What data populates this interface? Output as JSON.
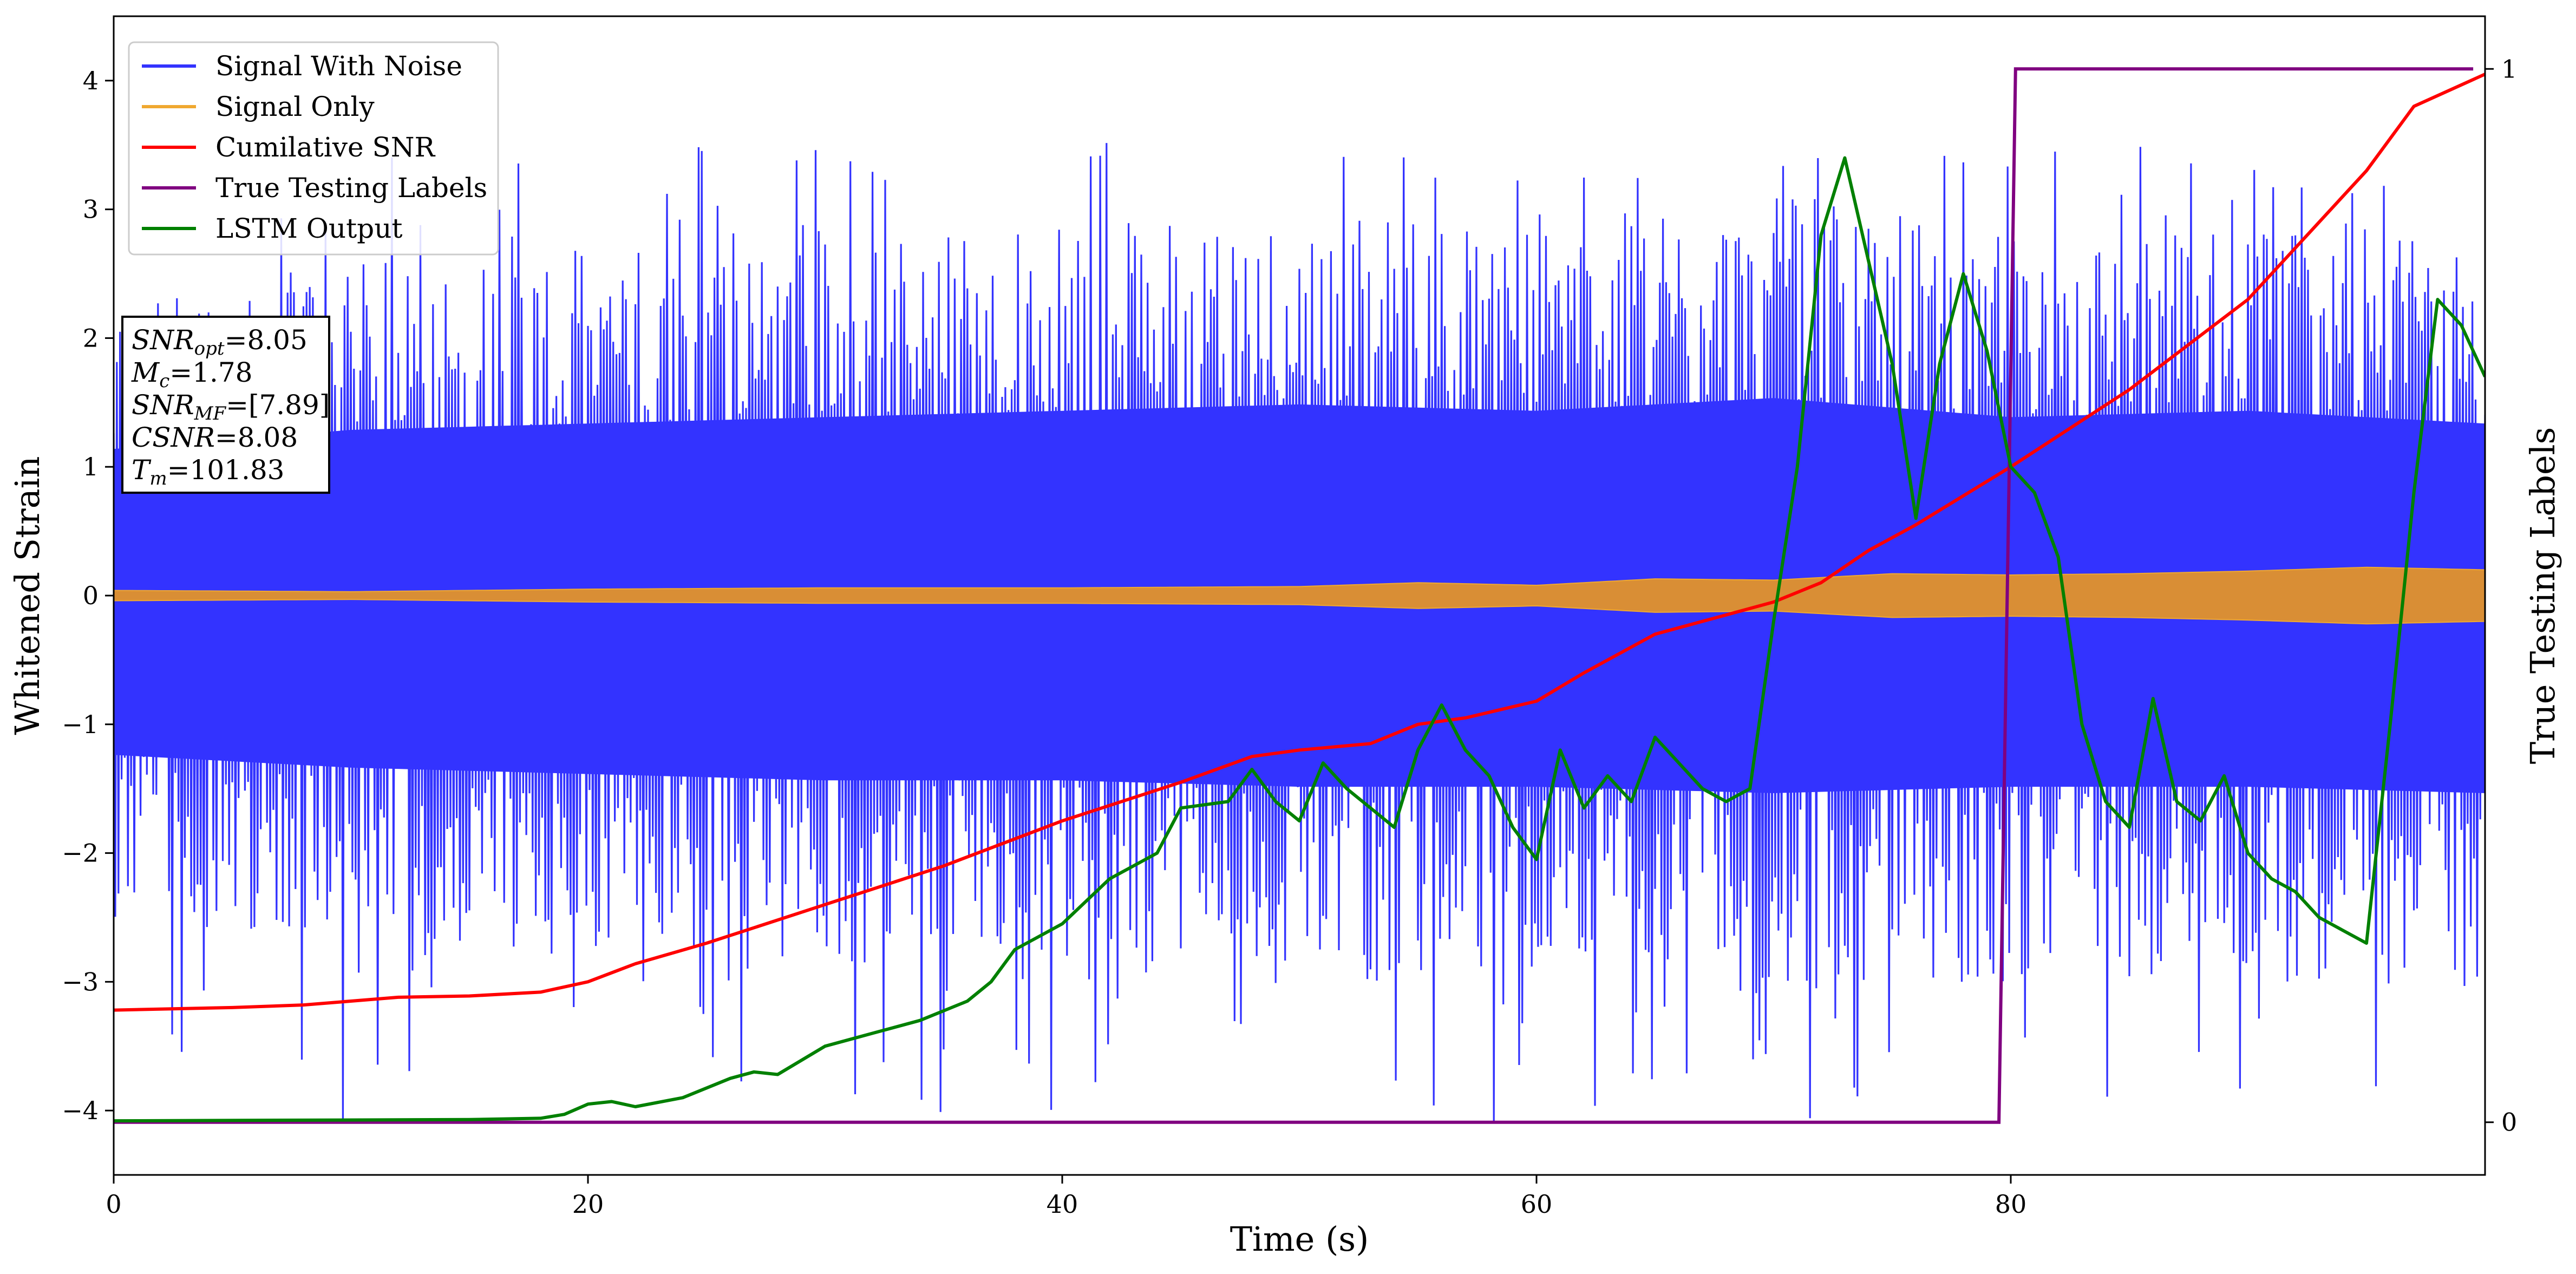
{
  "chart_data": {
    "type": "line",
    "xlabel": "Time (s)",
    "ylabel": "Whitened Strain",
    "ylabel_right": "True Testing Labels",
    "xlim": [
      0,
      100
    ],
    "ylim": [
      -4.5,
      4.5
    ],
    "ylim_right": [
      -0.05,
      1.05
    ],
    "xticks": [
      0,
      20,
      40,
      60,
      80
    ],
    "yticks": [
      -4,
      -3,
      -2,
      -1,
      0,
      1,
      2,
      3,
      4
    ],
    "yticks_right": [
      0,
      1
    ],
    "legend": {
      "placement": "top-left"
    },
    "series": [
      {
        "name": "Signal With Noise",
        "color": "#3333ff",
        "axis": "left",
        "note": "dense noise band",
        "x": [
          0,
          10,
          20,
          30,
          40,
          50,
          60,
          70,
          80,
          90,
          100
        ],
        "envelope_upper": [
          2.3,
          2.6,
          2.7,
          2.8,
          2.9,
          3.0,
          2.9,
          3.1,
          2.8,
          2.9,
          2.7
        ],
        "envelope_lower": [
          -2.5,
          -2.7,
          -2.8,
          -2.9,
          -2.9,
          -3.0,
          -3.0,
          -3.1,
          -3.0,
          -3.0,
          -3.1
        ],
        "peak_max": 3.55,
        "peak_min": -4.1
      },
      {
        "name": "Signal Only",
        "color": "#f0a830",
        "axis": "left",
        "x": [
          0,
          10,
          20,
          30,
          40,
          50,
          55,
          60,
          65,
          70,
          75,
          80,
          85,
          90,
          95,
          100
        ],
        "amplitude": [
          0.04,
          0.03,
          0.05,
          0.06,
          0.06,
          0.07,
          0.1,
          0.08,
          0.13,
          0.12,
          0.17,
          0.16,
          0.17,
          0.19,
          0.22,
          0.2
        ]
      },
      {
        "name": "Cumilative SNR",
        "color": "#ff0000",
        "axis": "left",
        "x": [
          0,
          5,
          8,
          10,
          12,
          15,
          18,
          20,
          22,
          25,
          30,
          35,
          40,
          45,
          48,
          50,
          53,
          55,
          57,
          60,
          62,
          65,
          68,
          70,
          72,
          74,
          76,
          80,
          85,
          90,
          95,
          97,
          100
        ],
        "y": [
          -3.22,
          -3.2,
          -3.18,
          -3.15,
          -3.12,
          -3.11,
          -3.08,
          -3.0,
          -2.86,
          -2.7,
          -2.4,
          -2.1,
          -1.75,
          -1.45,
          -1.25,
          -1.2,
          -1.15,
          -1.0,
          -0.95,
          -0.82,
          -0.6,
          -0.3,
          -0.15,
          -0.05,
          0.1,
          0.35,
          0.55,
          1.0,
          1.6,
          2.3,
          3.3,
          3.8,
          4.05
        ]
      },
      {
        "name": "True Testing Labels",
        "color": "#800080",
        "axis": "right",
        "x": [
          0,
          79.5,
          80.2,
          99.5
        ],
        "y": [
          0,
          0,
          1,
          1
        ]
      },
      {
        "name": "LSTM Output",
        "color": "#008000",
        "axis": "left",
        "x": [
          0,
          15,
          18,
          19,
          20,
          21,
          22,
          24,
          26,
          27,
          28,
          30,
          31,
          32,
          34,
          36,
          37,
          38,
          39,
          40,
          42,
          44,
          45,
          47,
          48,
          49,
          50,
          51,
          52,
          53,
          54,
          55,
          56,
          57,
          58,
          59,
          60,
          61,
          62,
          63,
          64,
          65,
          66,
          67,
          68,
          69,
          70,
          71,
          72,
          73,
          74,
          75,
          76,
          77,
          78,
          79,
          80,
          81,
          82,
          83,
          84,
          85,
          86,
          87,
          88,
          89,
          90,
          91,
          92,
          93,
          94,
          95,
          96,
          97,
          98,
          99,
          100
        ],
        "y": [
          -4.08,
          -4.07,
          -4.06,
          -4.03,
          -3.95,
          -3.93,
          -3.97,
          -3.9,
          -3.75,
          -3.7,
          -3.72,
          -3.5,
          -3.45,
          -3.4,
          -3.3,
          -3.15,
          -3.0,
          -2.75,
          -2.65,
          -2.55,
          -2.2,
          -2.0,
          -1.65,
          -1.6,
          -1.35,
          -1.6,
          -1.75,
          -1.3,
          -1.5,
          -1.65,
          -1.8,
          -1.2,
          -0.85,
          -1.2,
          -1.4,
          -1.8,
          -2.05,
          -1.2,
          -1.65,
          -1.4,
          -1.6,
          -1.1,
          -1.3,
          -1.5,
          -1.6,
          -1.5,
          -0.2,
          1.0,
          2.8,
          3.4,
          2.6,
          1.8,
          0.6,
          1.8,
          2.5,
          1.9,
          1.0,
          0.8,
          0.3,
          -1.0,
          -1.6,
          -1.8,
          -0.8,
          -1.6,
          -1.75,
          -1.4,
          -2.0,
          -2.2,
          -2.3,
          -2.5,
          -2.6,
          -2.7,
          -1.0,
          0.8,
          2.3,
          2.1,
          1.7
        ]
      }
    ],
    "annotation": {
      "lines": [
        {
          "base": "SNR",
          "sub": "opt",
          "value": "=8.05"
        },
        {
          "base": "M",
          "sub": "c",
          "value": "=1.78"
        },
        {
          "base": "SNR",
          "sub": "MF",
          "value": "=[7.89]"
        },
        {
          "base": "CSNR",
          "sub": "",
          "value": "=8.08"
        },
        {
          "base": "T",
          "sub": "m",
          "value": "=101.83"
        }
      ]
    }
  }
}
